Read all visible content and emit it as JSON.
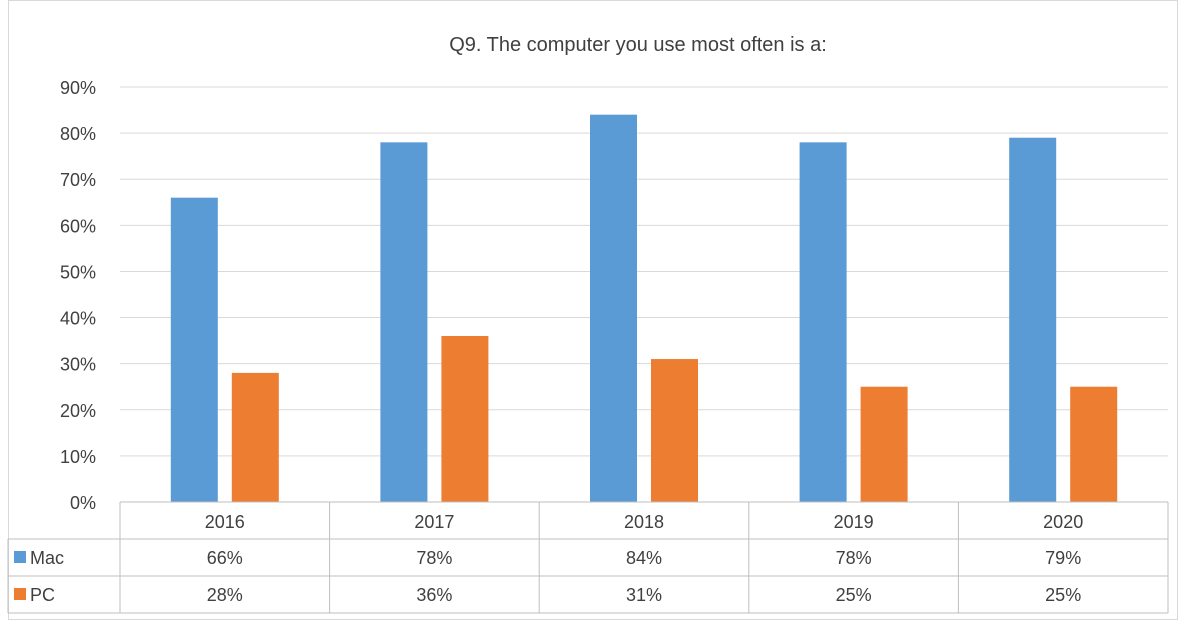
{
  "chart_data": {
    "type": "bar",
    "title": "Q9. The computer you use most often is a:",
    "categories": [
      "2016",
      "2017",
      "2018",
      "2019",
      "2020"
    ],
    "series": [
      {
        "name": "Mac",
        "values": [
          66,
          78,
          84,
          78,
          79
        ],
        "labels": [
          "66%",
          "78%",
          "84%",
          "78%",
          "79%"
        ],
        "color": "#5B9BD5"
      },
      {
        "name": "PC",
        "values": [
          28,
          36,
          31,
          25,
          25
        ],
        "labels": [
          "28%",
          "36%",
          "31%",
          "25%",
          "25%"
        ],
        "color": "#ED7D31"
      }
    ],
    "ylim": [
      0,
      90
    ],
    "yticks": [
      "0%",
      "10%",
      "20%",
      "30%",
      "40%",
      "50%",
      "60%",
      "70%",
      "80%",
      "90%"
    ],
    "grid": true,
    "legend": "data-table",
    "xlabel": "",
    "ylabel": ""
  }
}
